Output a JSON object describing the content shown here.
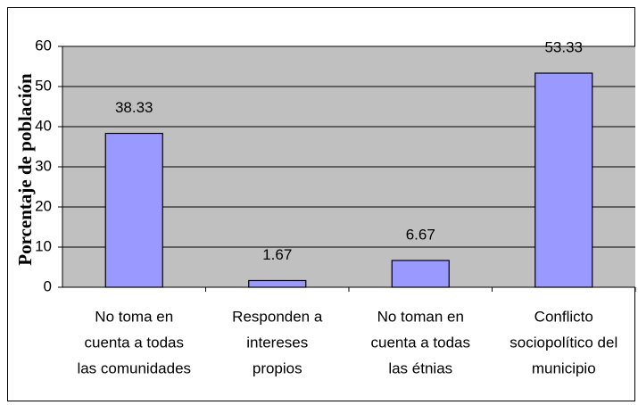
{
  "chart_data": {
    "type": "bar",
    "y_label": "Porcentaje de población",
    "categories": [
      [
        "No toma en",
        "cuenta a todas",
        "las comunidades"
      ],
      [
        "Responden a",
        "intereses",
        "propios"
      ],
      [
        "No toman en",
        "cuenta a todas",
        "las étnias"
      ],
      [
        "Conflicto",
        "sociopolítico del",
        "municipio"
      ]
    ],
    "values": [
      38.33,
      1.67,
      6.67,
      53.33
    ],
    "color": "#9999ff",
    "ylim": [
      0,
      60
    ],
    "yticks": [
      0,
      10,
      20,
      30,
      40,
      50,
      60
    ],
    "grid": true
  }
}
